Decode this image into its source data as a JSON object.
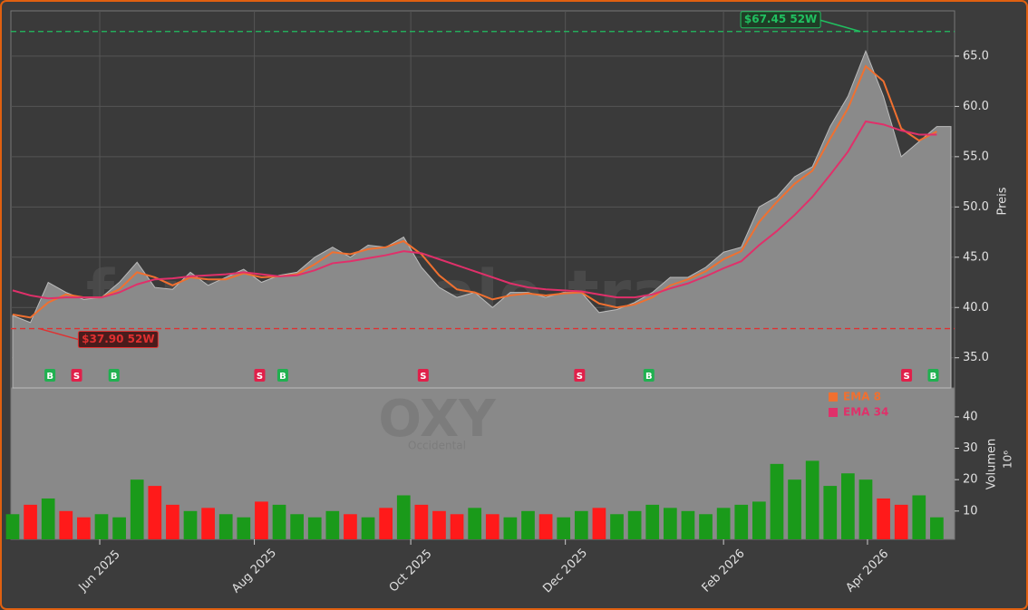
{
  "chart_data": [
    {
      "type": "area",
      "categories": [
        null,
        null,
        null,
        null,
        null,
        null,
        null,
        null,
        null,
        null,
        null,
        null,
        null,
        null,
        null,
        null,
        null,
        null,
        null,
        null,
        null,
        null,
        null,
        null,
        null,
        null,
        null,
        null,
        null,
        null,
        null,
        null,
        null,
        null,
        null,
        null,
        null,
        null,
        null,
        null,
        null,
        null,
        null,
        null,
        null,
        null,
        null,
        null,
        null,
        null,
        null,
        null,
        null
      ],
      "series": [
        {
          "color": "#8a8a8a",
          "values": [
            39.2,
            38.5,
            42.5,
            41.5,
            40.8,
            41.0,
            42.5,
            44.5,
            42.0,
            41.8,
            43.5,
            42.2,
            43.0,
            43.8,
            42.5,
            43.2,
            43.5,
            45.0,
            46.0,
            45.0,
            46.2,
            46.0,
            47.0,
            44.0,
            42.0,
            41.0,
            41.5,
            40.0,
            41.5,
            41.5,
            41.0,
            41.5,
            41.5,
            39.5,
            39.8,
            40.5,
            41.5,
            43.0,
            43.0,
            44.0,
            45.5,
            46.0,
            50.0,
            51.0,
            53.0,
            54.0,
            58.0,
            61.0,
            65.5,
            61.0,
            55.0,
            56.5,
            58.0
          ]
        },
        {
          "name": "EMA 8",
          "color": "#f07030",
          "values": [
            39.3,
            39.0,
            40.5,
            41.3,
            41.0,
            41.0,
            41.8,
            43.5,
            43.0,
            42.2,
            43.0,
            42.8,
            42.8,
            43.4,
            43.0,
            43.1,
            43.3,
            44.3,
            45.5,
            45.3,
            45.8,
            46.0,
            46.6,
            45.3,
            43.2,
            41.8,
            41.5,
            40.8,
            41.2,
            41.4,
            41.2,
            41.4,
            41.5,
            40.4,
            40.0,
            40.3,
            41.0,
            42.2,
            42.8,
            43.6,
            44.8,
            45.6,
            48.5,
            50.5,
            52.3,
            53.6,
            56.8,
            59.8,
            64.0,
            62.5,
            57.8,
            56.6,
            57.5
          ]
        },
        {
          "name": "EMA 34",
          "color": "#e0306a",
          "values": [
            41.7,
            41.2,
            40.9,
            41.0,
            41.0,
            41.0,
            41.5,
            42.3,
            42.8,
            42.9,
            43.1,
            43.2,
            43.3,
            43.5,
            43.3,
            43.1,
            43.2,
            43.7,
            44.4,
            44.6,
            44.9,
            45.2,
            45.6,
            45.4,
            44.8,
            44.2,
            43.6,
            43.0,
            42.4,
            42.0,
            41.8,
            41.7,
            41.6,
            41.3,
            41.0,
            41.0,
            41.3,
            41.9,
            42.4,
            43.1,
            43.9,
            44.6,
            46.2,
            47.6,
            49.2,
            51.0,
            53.2,
            55.5,
            58.5,
            58.2,
            57.6,
            57.2,
            57.2
          ]
        }
      ],
      "ylim": [
        32,
        69.5
      ],
      "yticks": [
        {
          "value": 35,
          "label": "35.0"
        },
        {
          "value": 40,
          "label": "40.0"
        },
        {
          "value": 45,
          "label": "45.0"
        },
        {
          "value": 50,
          "label": "50.0"
        },
        {
          "value": 55,
          "label": "55.0"
        },
        {
          "value": 60,
          "label": "60.0"
        },
        {
          "value": 65,
          "label": "65.0"
        }
      ],
      "y_label": "Preis",
      "grid": true,
      "annotations": [
        {
          "text": "$67.45 52W",
          "value": 67.45,
          "index": 47.7,
          "color": "#20c060"
        },
        {
          "text": "$37.90 52W",
          "value": 37.9,
          "index": 1.5,
          "color": "#e03030"
        }
      ],
      "signals": [
        {
          "label": "B",
          "index": 2.1
        },
        {
          "label": "S",
          "index": 3.6
        },
        {
          "label": "B",
          "index": 5.7
        },
        {
          "label": "S",
          "index": 13.9
        },
        {
          "label": "B",
          "index": 15.2
        },
        {
          "label": "S",
          "index": 23.1
        },
        {
          "label": "S",
          "index": 31.9
        },
        {
          "label": "B",
          "index": 35.8
        },
        {
          "label": "S",
          "index": 50.3
        },
        {
          "label": "B",
          "index": 51.8
        }
      ],
      "watermark": "forexsignale.trade"
    },
    {
      "type": "bar",
      "categories": [
        null,
        null,
        null,
        null,
        null,
        null,
        null,
        null,
        null,
        null,
        null,
        null,
        null,
        null,
        null,
        null,
        null,
        null,
        null,
        null,
        null,
        null,
        null,
        null,
        null,
        null,
        null,
        null,
        null,
        null,
        null,
        null,
        null,
        null,
        null,
        null,
        null,
        null,
        null,
        null,
        null,
        null,
        null,
        null,
        null,
        null,
        null,
        null,
        null,
        null,
        null,
        null,
        null
      ],
      "values": [
        9,
        12,
        14,
        10,
        8,
        9,
        8,
        20,
        18,
        12,
        10,
        11,
        9,
        8,
        13,
        12,
        9,
        8,
        10,
        9,
        8,
        11,
        15,
        12,
        10,
        9,
        11,
        9,
        8,
        10,
        9,
        8,
        10,
        11,
        9,
        10,
        12,
        11,
        10,
        9,
        11,
        12,
        13,
        25,
        20,
        26,
        18,
        22,
        20,
        14,
        12,
        15,
        8
      ],
      "up_color": "#1a9a1a",
      "down_color": "#ff1a1a",
      "ylim": [
        1,
        49.2
      ],
      "yticks": [
        10,
        20,
        30,
        40
      ],
      "xlim": [
        -0.1,
        53.0
      ],
      "xticks": [
        {
          "value": 4.9,
          "label": "Jun 2025"
        },
        {
          "value": 13.6,
          "label": "Aug 2025"
        },
        {
          "value": 22.4,
          "label": "Oct 2025"
        },
        {
          "value": 31.1,
          "label": "Dec 2025"
        },
        {
          "value": 40.0,
          "label": "Feb 2026"
        },
        {
          "value": 48.1,
          "label": "Apr 2026"
        }
      ],
      "y_label": "Volumen",
      "y_unit": "10⁶",
      "logo": "OXY",
      "logo_subtitle": "Occidental"
    }
  ]
}
